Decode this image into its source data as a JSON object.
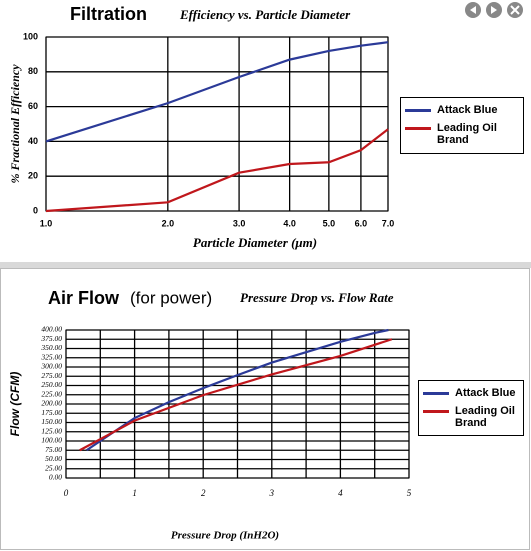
{
  "chart_data": [
    {
      "type": "line",
      "title": "Filtration",
      "subtitle": "Efficiency vs. Particle Diameter",
      "x_label": "Particle Diameter (μm)",
      "y_label": "% Fractional Efficiency",
      "x": [
        1,
        2,
        3,
        4,
        5,
        6,
        7
      ],
      "xscale": "log",
      "xlim": [
        1,
        7
      ],
      "xticks": [
        {
          "value": 1,
          "label": "1.0"
        },
        {
          "value": 2,
          "label": "2.0"
        },
        {
          "value": 3,
          "label": "3.0"
        },
        {
          "value": 4,
          "label": "4.0"
        },
        {
          "value": 5,
          "label": "5.0"
        },
        {
          "value": 6,
          "label": "6.0"
        },
        {
          "value": 7,
          "label": "7.0"
        }
      ],
      "ylim": [
        0,
        100
      ],
      "yticks": [
        0,
        20,
        40,
        60,
        80,
        100
      ],
      "grid": true,
      "legend": "right",
      "series": [
        {
          "name": "Attack Blue",
          "color": "#2b3a98",
          "values": [
            40,
            62,
            77,
            87,
            92,
            95,
            97
          ]
        },
        {
          "name": "Leading Oil Brand",
          "color": "#c0171c",
          "values": [
            0,
            5,
            22,
            27,
            28,
            35,
            47
          ]
        }
      ]
    },
    {
      "type": "line",
      "title": "Air Flow",
      "title_suffix": "(for power)",
      "subtitle": "Pressure Drop vs. Flow Rate",
      "x_label": "Pressure Drop (InH2O)",
      "y_label": "Flow (CFM)",
      "xlim": [
        0,
        5
      ],
      "xticks": [
        0,
        1,
        2,
        3,
        4,
        5
      ],
      "ylim": [
        0,
        400
      ],
      "yticks": [
        {
          "value": 0,
          "label": "0.00"
        },
        {
          "value": 25,
          "label": "25.00"
        },
        {
          "value": 50,
          "label": "50.00"
        },
        {
          "value": 75,
          "label": "75.00"
        },
        {
          "value": 100,
          "label": "100.00"
        },
        {
          "value": 125,
          "label": "125.00"
        },
        {
          "value": 150,
          "label": "150.00"
        },
        {
          "value": 175,
          "label": "175.00"
        },
        {
          "value": 200,
          "label": "200.00"
        },
        {
          "value": 225,
          "label": "225.00"
        },
        {
          "value": 250,
          "label": "250.00"
        },
        {
          "value": 275,
          "label": "275.00"
        },
        {
          "value": 300,
          "label": "300.00"
        },
        {
          "value": 325,
          "label": "325.00"
        },
        {
          "value": 350,
          "label": "350.00"
        },
        {
          "value": 375,
          "label": "375.00"
        },
        {
          "value": 400,
          "label": "400.00"
        }
      ],
      "grid": true,
      "legend": "right",
      "series": [
        {
          "name": "Attack Blue",
          "color": "#2b3a98",
          "x": [
            0.3,
            0.5,
            1,
            1.5,
            2,
            2.5,
            3,
            3.5,
            4,
            4.5,
            4.7
          ],
          "values": [
            75,
            100,
            162,
            205,
            243,
            278,
            312,
            340,
            368,
            392,
            400
          ]
        },
        {
          "name": "Leading Oil Brand",
          "color": "#c0171c",
          "x": [
            0.2,
            1,
            2,
            3,
            4,
            4.75
          ],
          "values": [
            75,
            155,
            224,
            280,
            330,
            375
          ]
        }
      ]
    }
  ]
}
